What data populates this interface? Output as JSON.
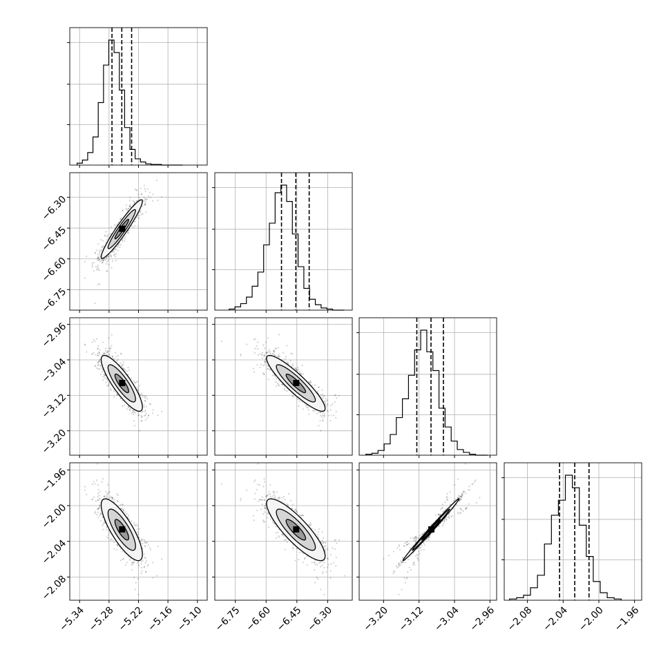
{
  "chart_data": {
    "type": "corner",
    "parameters": 4,
    "grid": true,
    "axis_ranges": [
      [
        -5.36,
        -5.08
      ],
      [
        -6.85,
        -6.18
      ],
      [
        -3.255,
        -2.945
      ],
      [
        -2.106,
        -1.952
      ]
    ],
    "tick_labels": [
      [
        "−5.34",
        "−5.28",
        "−5.22",
        "−5.16",
        "−5.10"
      ],
      [
        "−6.75",
        "−6.60",
        "−6.45",
        "−6.30"
      ],
      [
        "−3.20",
        "−3.12",
        "−3.04",
        "−2.96"
      ],
      [
        "−2.08",
        "−2.04",
        "−2.00",
        "−1.96"
      ]
    ],
    "tick_values": [
      [
        -5.34,
        -5.28,
        -5.22,
        -5.16,
        -5.1
      ],
      [
        -6.75,
        -6.6,
        -6.45,
        -6.3
      ],
      [
        -3.2,
        -3.12,
        -3.04,
        -2.96
      ],
      [
        -2.08,
        -2.04,
        -2.0,
        -1.96
      ]
    ],
    "quantiles": [
      [
        -5.274,
        -5.254,
        -5.234
      ],
      [
        -6.525,
        -6.455,
        -6.39
      ],
      [
        -3.125,
        -3.093,
        -3.065
      ],
      [
        -2.044,
        -2.027,
        -2.011
      ]
    ],
    "histograms": [
      {
        "edges_range": [
          -5.345,
          -5.13
        ],
        "counts": [
          3,
          8,
          20,
          45,
          100,
          160,
          200,
          180,
          120,
          60,
          25,
          10,
          5,
          2,
          1,
          1,
          0,
          0,
          0,
          0
        ]
      },
      {
        "edges_range": [
          -6.78,
          -6.22
        ],
        "counts": [
          1,
          3,
          6,
          12,
          22,
          35,
          60,
          80,
          108,
          115,
          100,
          70,
          40,
          20,
          10,
          5,
          2,
          1,
          0,
          0
        ]
      },
      {
        "edges_range": [
          -3.24,
          -2.965
        ],
        "counts": [
          1,
          2,
          5,
          12,
          22,
          40,
          60,
          85,
          112,
          133,
          110,
          90,
          50,
          30,
          15,
          6,
          3,
          1,
          0,
          0
        ]
      },
      {
        "edges_range": [
          -2.1,
          -1.975
        ],
        "counts": [
          1,
          2,
          4,
          10,
          20,
          45,
          68,
          80,
          100,
          90,
          60,
          35,
          15,
          6,
          2,
          1
        ]
      }
    ],
    "scatter_model": {
      "means": [
        -5.254,
        -6.455,
        -3.093,
        -2.027
      ],
      "stds": [
        0.02,
        0.068,
        0.03,
        0.0165
      ],
      "correlations": [
        [
          1.0,
          0.95,
          -0.85,
          -0.8
        ],
        [
          0.95,
          1.0,
          -0.9,
          -0.85
        ],
        [
          -0.85,
          -0.9,
          1.0,
          0.995
        ],
        [
          -0.8,
          -0.85,
          0.995,
          1.0
        ]
      ]
    }
  }
}
